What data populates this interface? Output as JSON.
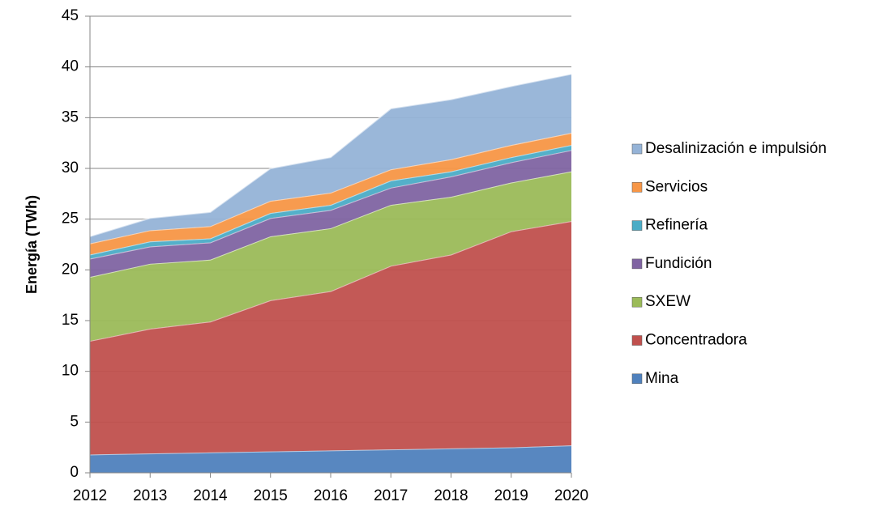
{
  "chart_data": {
    "type": "stacked-area",
    "y_label": "Energía (TWh)",
    "x": [
      2012,
      2013,
      2014,
      2015,
      2016,
      2017,
      2018,
      2019,
      2020
    ],
    "xlim": [
      2012,
      2020
    ],
    "xticks": [
      2012,
      2013,
      2014,
      2015,
      2016,
      2017,
      2018,
      2019,
      2020
    ],
    "ylim": [
      0,
      45
    ],
    "yticks": [
      0,
      5,
      10,
      15,
      20,
      25,
      30,
      35,
      40,
      45
    ],
    "grid": true,
    "legend": "right",
    "series": [
      {
        "name": "Mina",
        "color": "#4f81bd",
        "values": [
          1.8,
          1.9,
          2.0,
          2.1,
          2.2,
          2.3,
          2.4,
          2.5,
          2.7
        ]
      },
      {
        "name": "Concentradora",
        "color": "#c0504d",
        "values": [
          11.2,
          12.3,
          12.9,
          14.9,
          15.7,
          18.1,
          19.1,
          21.3,
          22.1
        ]
      },
      {
        "name": "SXEW",
        "color": "#9bbb59",
        "values": [
          6.3,
          6.4,
          6.1,
          6.3,
          6.2,
          6.0,
          5.7,
          4.8,
          4.9
        ]
      },
      {
        "name": "Fundición",
        "color": "#8064a2",
        "values": [
          1.8,
          1.7,
          1.7,
          1.8,
          1.8,
          1.7,
          2.0,
          2.0,
          2.1
        ]
      },
      {
        "name": "Refinería",
        "color": "#4bacc6",
        "values": [
          0.4,
          0.5,
          0.4,
          0.5,
          0.5,
          0.7,
          0.5,
          0.5,
          0.5
        ]
      },
      {
        "name": "Servicios",
        "color": "#f79646",
        "values": [
          1.1,
          1.1,
          1.2,
          1.2,
          1.2,
          1.1,
          1.2,
          1.2,
          1.2
        ]
      },
      {
        "name": "Desalinización e impulsión",
        "color": "#95b3d7",
        "values": [
          0.7,
          1.2,
          1.4,
          3.2,
          3.5,
          6.0,
          5.9,
          5.8,
          5.8
        ]
      }
    ]
  }
}
